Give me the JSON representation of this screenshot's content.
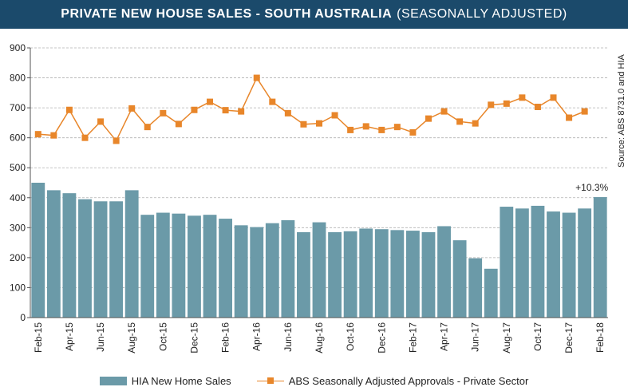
{
  "header": {
    "title_main": "PRIVATE  NEW HOUSE SALES  -  SOUTH AUSTRALIA",
    "title_sub": "(SEASONALLY ADJUSTED)"
  },
  "source_note": "Source: ABS 8731.0 and HIA",
  "legend": {
    "bar_label": "HIA New Home Sales",
    "line_label": "ABS Seasonally Adjusted Approvals - Private Sector"
  },
  "colors": {
    "title_bg": "#1b4a6b",
    "bar": "#6b9aa8",
    "line": "#e8862a",
    "grid": "#b0b0b0"
  },
  "chart_data": {
    "type": "bar",
    "title": "PRIVATE  NEW HOUSE SALES  -  SOUTH AUSTRALIA (SEASONALLY ADJUSTED)",
    "xlabel": "",
    "ylabel": "",
    "ylim": [
      0,
      900
    ],
    "yticks": [
      0,
      100,
      200,
      300,
      400,
      500,
      600,
      700,
      800,
      900
    ],
    "grid": true,
    "legend_position": "bottom",
    "x_tick_labels": [
      "Feb-15",
      "Apr-15",
      "Jun-15",
      "Aug-15",
      "Oct-15",
      "Dec-15",
      "Feb-16",
      "Apr-16",
      "Jun-16",
      "Aug-16",
      "Oct-16",
      "Dec-16",
      "Feb-17",
      "Apr-17",
      "Jun-17",
      "Aug-17",
      "Oct-17",
      "Dec-17",
      "Feb-18"
    ],
    "categories": [
      "Feb-15",
      "Mar-15",
      "Apr-15",
      "May-15",
      "Jun-15",
      "Jul-15",
      "Aug-15",
      "Sep-15",
      "Oct-15",
      "Nov-15",
      "Dec-15",
      "Jan-16",
      "Feb-16",
      "Mar-16",
      "Apr-16",
      "May-16",
      "Jun-16",
      "Jul-16",
      "Aug-16",
      "Sep-16",
      "Oct-16",
      "Nov-16",
      "Dec-16",
      "Jan-17",
      "Feb-17",
      "Mar-17",
      "Apr-17",
      "May-17",
      "Jun-17",
      "Jul-17",
      "Aug-17",
      "Sep-17",
      "Oct-17",
      "Nov-17",
      "Dec-17",
      "Jan-18",
      "Feb-18"
    ],
    "series": [
      {
        "name": "HIA New Home Sales",
        "kind": "bar",
        "values": [
          450,
          425,
          415,
          395,
          388,
          388,
          425,
          343,
          350,
          347,
          340,
          343,
          330,
          308,
          302,
          315,
          325,
          285,
          318,
          285,
          288,
          297,
          295,
          292,
          290,
          285,
          305,
          258,
          198,
          163,
          370,
          364,
          373,
          354,
          350,
          364,
          402
        ]
      },
      {
        "name": "ABS Seasonally Adjusted Approvals - Private Sector",
        "kind": "line",
        "values": [
          612,
          608,
          693,
          600,
          654,
          590,
          698,
          636,
          682,
          646,
          693,
          720,
          692,
          688,
          800,
          720,
          682,
          645,
          648,
          675,
          626,
          638,
          626,
          636,
          618,
          664,
          688,
          654,
          648,
          710,
          714,
          734,
          703,
          734,
          667,
          688,
          null
        ]
      }
    ],
    "annotations": [
      {
        "text": "+10.3%",
        "category": "Feb-18"
      }
    ]
  }
}
